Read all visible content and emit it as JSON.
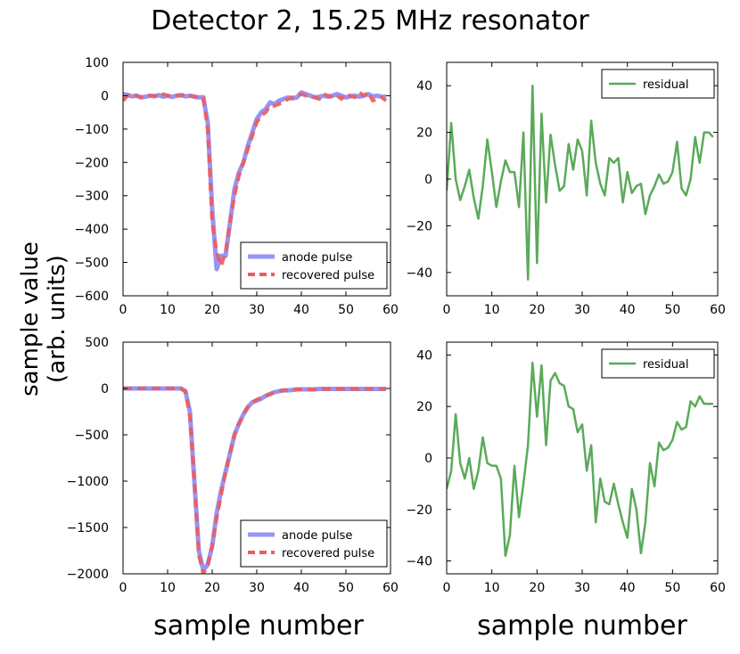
{
  "title": "Detector 2, 15.25 MHz resonator",
  "ylabel_line1": "sample value",
  "ylabel_line2": "(arb. units)",
  "colors": {
    "anode": "#8a8af5",
    "recovered": "#f05a5a",
    "residual": "#5aaa5a"
  },
  "chart_data": [
    {
      "id": "top-left",
      "type": "line",
      "title": "",
      "xlabel": "",
      "ylabel": "sample value (arb. units)",
      "xlim": [
        0,
        60
      ],
      "ylim": [
        -600,
        100
      ],
      "xticks": [
        0,
        10,
        20,
        30,
        40,
        50,
        60
      ],
      "yticks": [
        100,
        0,
        -100,
        -200,
        -300,
        -400,
        -500,
        -600
      ],
      "ytick_labels": [
        "100",
        "0",
        "−100",
        "−200",
        "−300",
        "−400",
        "−500",
        "−600"
      ],
      "legend_position": "bottom-right",
      "series": [
        {
          "name": "anode pulse",
          "style": "solid",
          "x": [
            0,
            1,
            2,
            3,
            4,
            5,
            6,
            7,
            8,
            9,
            10,
            11,
            12,
            13,
            14,
            15,
            16,
            17,
            18,
            19,
            20,
            21,
            22,
            23,
            24,
            25,
            26,
            27,
            28,
            29,
            30,
            31,
            32,
            33,
            34,
            35,
            36,
            37,
            38,
            39,
            40,
            41,
            42,
            43,
            44,
            45,
            46,
            47,
            48,
            49,
            50,
            51,
            52,
            53,
            54,
            55,
            56,
            57,
            58,
            59
          ],
          "y": [
            5,
            3,
            -2,
            0,
            -5,
            -3,
            0,
            -2,
            2,
            -3,
            0,
            -4,
            0,
            2,
            -2,
            0,
            -3,
            -5,
            -5,
            -80,
            -340,
            -520,
            -480,
            -480,
            -380,
            -280,
            -230,
            -200,
            -150,
            -110,
            -70,
            -50,
            -40,
            -20,
            -25,
            -15,
            -10,
            -5,
            -8,
            -5,
            10,
            5,
            0,
            -5,
            -3,
            0,
            -3,
            0,
            5,
            0,
            -5,
            -2,
            0,
            -3,
            0,
            5,
            -2,
            0,
            -3,
            -2
          ]
        },
        {
          "name": "recovered pulse",
          "style": "dashed",
          "x": [
            0,
            1,
            2,
            3,
            4,
            5,
            6,
            7,
            8,
            9,
            10,
            11,
            12,
            13,
            14,
            15,
            16,
            17,
            18,
            19,
            20,
            21,
            22,
            23,
            24,
            25,
            26,
            27,
            28,
            29,
            30,
            31,
            32,
            33,
            34,
            35,
            36,
            37,
            38,
            39,
            40,
            41,
            42,
            43,
            44,
            45,
            46,
            47,
            48,
            49,
            50,
            51,
            52,
            53,
            54,
            55,
            56,
            57,
            58,
            59
          ],
          "y": [
            -15,
            0,
            5,
            0,
            -5,
            0,
            0,
            0,
            -3,
            5,
            0,
            -2,
            0,
            0,
            5,
            0,
            -2,
            -5,
            -5,
            -100,
            -380,
            -470,
            -510,
            -470,
            -380,
            -300,
            -240,
            -200,
            -160,
            -120,
            -80,
            -60,
            -50,
            -30,
            -30,
            -25,
            -20,
            -10,
            -5,
            0,
            5,
            0,
            0,
            -5,
            -10,
            5,
            0,
            -5,
            0,
            -10,
            5,
            0,
            -5,
            10,
            0,
            10,
            -15,
            -10,
            -5,
            -15
          ]
        }
      ]
    },
    {
      "id": "top-right",
      "type": "line",
      "title": "",
      "xlabel": "",
      "ylabel": "",
      "xlim": [
        0,
        60
      ],
      "ylim": [
        -50,
        50
      ],
      "xticks": [
        0,
        10,
        20,
        30,
        40,
        50,
        60
      ],
      "yticks": [
        40,
        20,
        0,
        -20,
        -40
      ],
      "ytick_labels": [
        "40",
        "20",
        "0",
        "−20",
        "−40"
      ],
      "legend_position": "top-right",
      "series": [
        {
          "name": "residual",
          "style": "solid",
          "x": [
            0,
            1,
            2,
            3,
            4,
            5,
            6,
            7,
            8,
            9,
            10,
            11,
            12,
            13,
            14,
            15,
            16,
            17,
            18,
            19,
            20,
            21,
            22,
            23,
            24,
            25,
            26,
            27,
            28,
            29,
            30,
            31,
            32,
            33,
            34,
            35,
            36,
            37,
            38,
            39,
            40,
            41,
            42,
            43,
            44,
            45,
            46,
            47,
            48,
            49,
            50,
            51,
            52,
            53,
            54,
            55,
            56,
            57,
            58,
            59
          ],
          "y": [
            -5,
            24,
            0,
            -9,
            -3,
            4,
            -8,
            -17,
            -3,
            17,
            3,
            -12,
            -1,
            8,
            3,
            3,
            -12,
            20,
            -43,
            40,
            -36,
            28,
            -10,
            19,
            6,
            -5,
            -3,
            15,
            4,
            17,
            12,
            -7,
            25,
            7,
            -2,
            -7,
            9,
            7,
            9,
            -10,
            3,
            -6,
            -3,
            -2,
            -15,
            -7,
            -3,
            2,
            -2,
            -1,
            3,
            16,
            -4,
            -7,
            0,
            18,
            7,
            20,
            20,
            18
          ]
        }
      ]
    },
    {
      "id": "bottom-left",
      "type": "line",
      "title": "",
      "xlabel": "sample number",
      "ylabel": "sample value (arb. units)",
      "xlim": [
        0,
        60
      ],
      "ylim": [
        -2000,
        500
      ],
      "xticks": [
        0,
        10,
        20,
        30,
        40,
        50,
        60
      ],
      "yticks": [
        500,
        0,
        -500,
        -1000,
        -1500,
        -2000
      ],
      "ytick_labels": [
        "500",
        "0",
        "−500",
        "−1000",
        "−1500",
        "−2000"
      ],
      "legend_position": "bottom-right",
      "series": [
        {
          "name": "anode pulse",
          "style": "solid",
          "x": [
            0,
            1,
            2,
            3,
            4,
            5,
            6,
            7,
            8,
            9,
            10,
            11,
            12,
            13,
            14,
            15,
            16,
            17,
            18,
            19,
            20,
            21,
            22,
            23,
            24,
            25,
            26,
            27,
            28,
            29,
            30,
            31,
            32,
            33,
            34,
            35,
            36,
            37,
            38,
            39,
            40,
            41,
            42,
            43,
            44,
            45,
            46,
            47,
            48,
            49,
            50,
            51,
            52,
            53,
            54,
            55,
            56,
            57,
            58,
            59
          ],
          "y": [
            0,
            0,
            0,
            0,
            0,
            0,
            0,
            0,
            0,
            0,
            0,
            0,
            0,
            0,
            -30,
            -250,
            -1000,
            -1750,
            -1960,
            -1900,
            -1700,
            -1350,
            -1100,
            -900,
            -700,
            -500,
            -380,
            -280,
            -200,
            -150,
            -130,
            -110,
            -80,
            -60,
            -40,
            -30,
            -20,
            -20,
            -15,
            -10,
            -10,
            -10,
            -10,
            -10,
            -5,
            -5,
            -5,
            -5,
            -5,
            -5,
            -5,
            -5,
            -5,
            -5,
            -5,
            -5,
            -5,
            -5,
            -5,
            -5
          ]
        },
        {
          "name": "recovered pulse",
          "style": "dashed",
          "x": [
            0,
            1,
            2,
            3,
            4,
            5,
            6,
            7,
            8,
            9,
            10,
            11,
            12,
            13,
            14,
            15,
            16,
            17,
            18,
            19,
            20,
            21,
            22,
            23,
            24,
            25,
            26,
            27,
            28,
            29,
            30,
            31,
            32,
            33,
            34,
            35,
            36,
            37,
            38,
            39,
            40,
            41,
            42,
            43,
            44,
            45,
            46,
            47,
            48,
            49,
            50,
            51,
            52,
            53,
            54,
            55,
            56,
            57,
            58,
            59
          ],
          "y": [
            0,
            0,
            0,
            0,
            0,
            0,
            0,
            0,
            0,
            0,
            0,
            0,
            0,
            0,
            -30,
            -300,
            -1000,
            -1800,
            -2000,
            -1900,
            -1700,
            -1400,
            -1150,
            -900,
            -700,
            -500,
            -380,
            -280,
            -200,
            -150,
            -120,
            -100,
            -80,
            -60,
            -40,
            -30,
            -20,
            -20,
            -15,
            -10,
            -10,
            -10,
            -10,
            -10,
            -5,
            -5,
            -5,
            -5,
            -5,
            -5,
            -5,
            -5,
            -5,
            -5,
            -5,
            -5,
            -5,
            -5,
            -5,
            -5
          ]
        }
      ]
    },
    {
      "id": "bottom-right",
      "type": "line",
      "title": "",
      "xlabel": "sample number",
      "ylabel": "",
      "xlim": [
        0,
        60
      ],
      "ylim": [
        -45,
        45
      ],
      "xticks": [
        0,
        10,
        20,
        30,
        40,
        50,
        60
      ],
      "yticks": [
        40,
        20,
        0,
        -20,
        -40
      ],
      "ytick_labels": [
        "40",
        "20",
        "0",
        "−20",
        "−40"
      ],
      "legend_position": "top-right",
      "series": [
        {
          "name": "residual",
          "style": "solid",
          "x": [
            0,
            1,
            2,
            3,
            4,
            5,
            6,
            7,
            8,
            9,
            10,
            11,
            12,
            13,
            14,
            15,
            16,
            17,
            18,
            19,
            20,
            21,
            22,
            23,
            24,
            25,
            26,
            27,
            28,
            29,
            30,
            31,
            32,
            33,
            34,
            35,
            36,
            37,
            38,
            39,
            40,
            41,
            42,
            43,
            44,
            45,
            46,
            47,
            48,
            49,
            50,
            51,
            52,
            53,
            54,
            55,
            56,
            57,
            58,
            59
          ],
          "y": [
            -12,
            -5,
            17,
            -2,
            -8,
            0,
            -12,
            -5,
            8,
            -2,
            -3,
            -3,
            -8,
            -38,
            -30,
            -3,
            -23,
            -10,
            5,
            37,
            16,
            36,
            5,
            30,
            33,
            29,
            28,
            20,
            19,
            10,
            13,
            -5,
            5,
            -25,
            -8,
            -17,
            -18,
            -10,
            -18,
            -25,
            -31,
            -12,
            -20,
            -37,
            -25,
            -2,
            -11,
            6,
            3,
            4,
            7,
            14,
            11,
            12,
            22,
            20,
            24,
            21,
            21,
            21
          ]
        }
      ]
    }
  ]
}
